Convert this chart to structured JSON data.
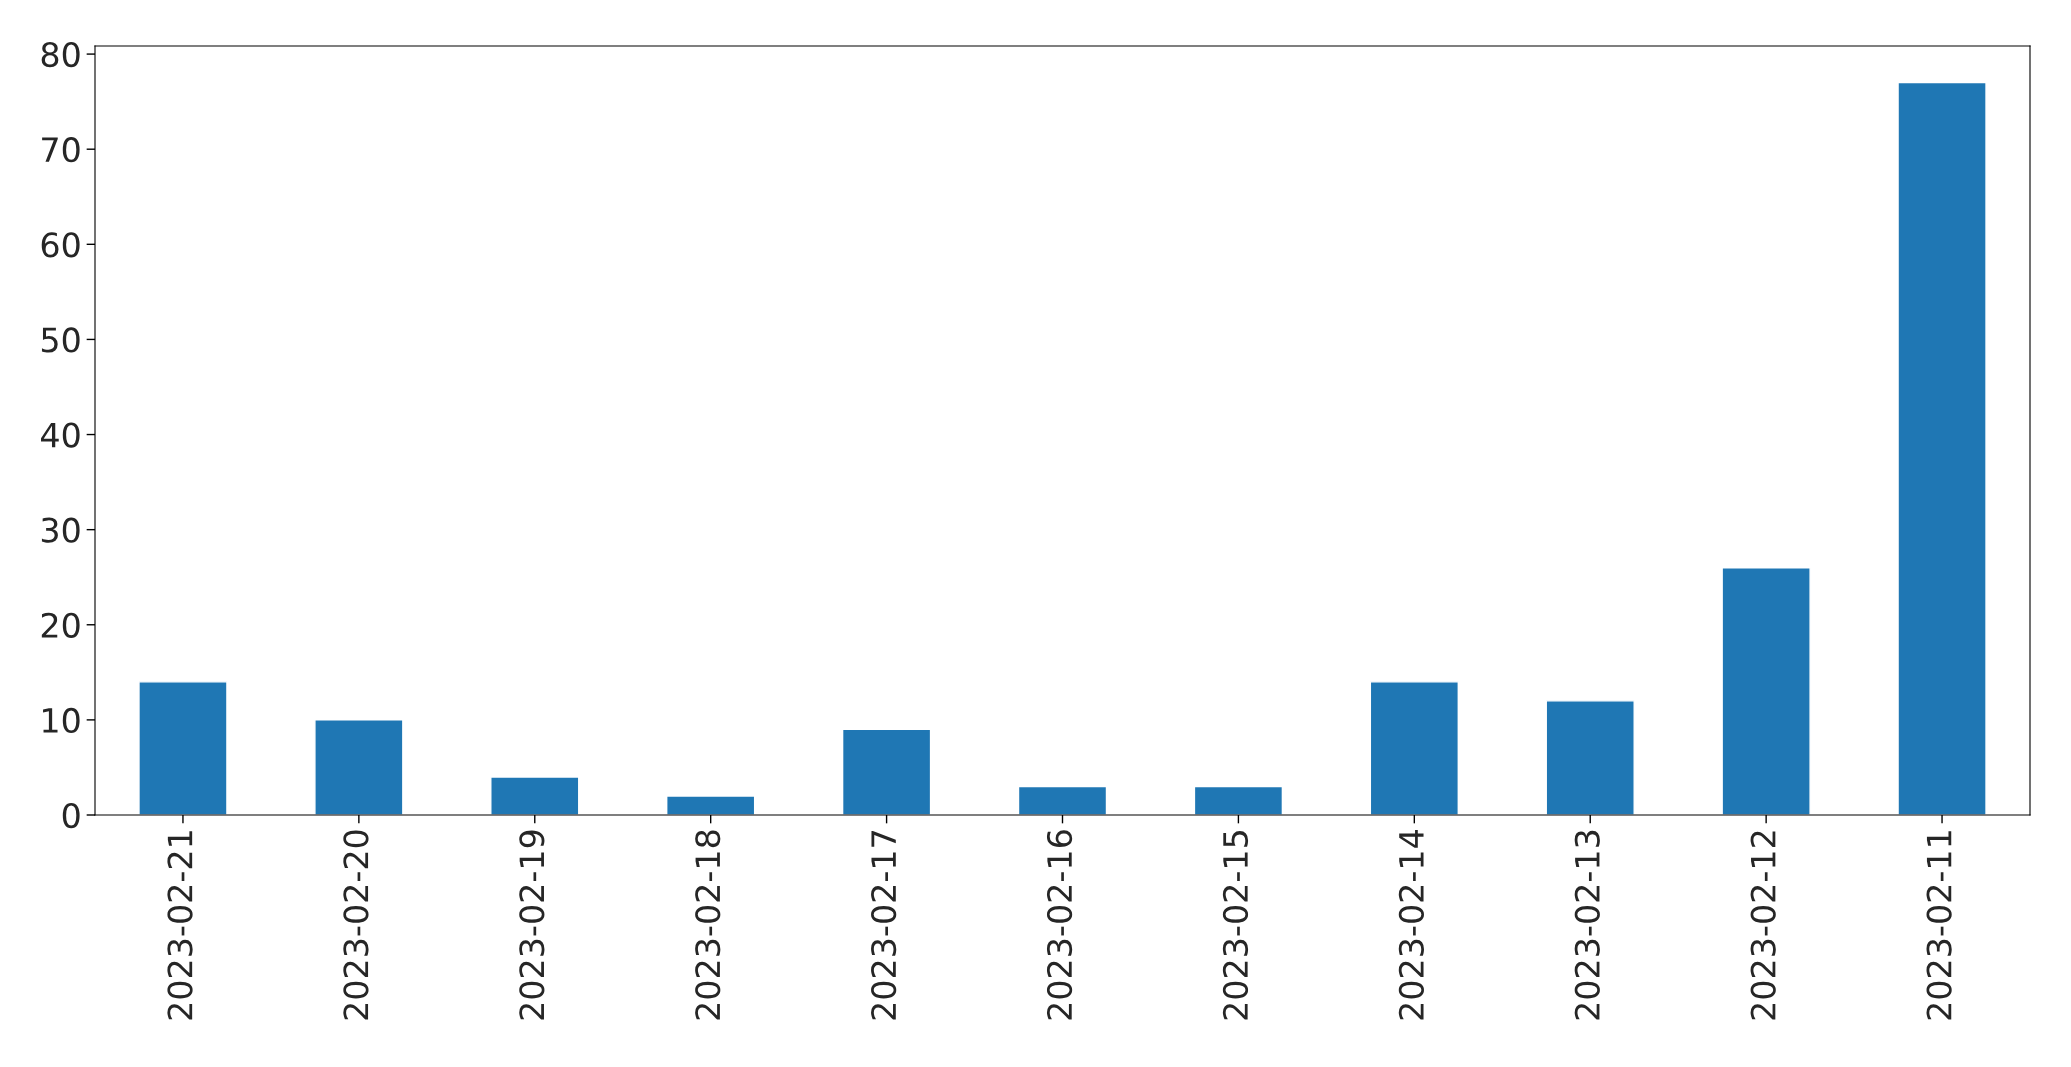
{
  "chart_data": {
    "type": "bar",
    "categories": [
      "2023-02-21",
      "2023-02-20",
      "2023-02-19",
      "2023-02-18",
      "2023-02-17",
      "2023-02-16",
      "2023-02-15",
      "2023-02-14",
      "2023-02-13",
      "2023-02-12",
      "2023-02-11"
    ],
    "values": [
      14,
      10,
      4,
      2,
      9,
      3,
      3,
      14,
      12,
      26,
      77
    ],
    "color": "#1f77b4",
    "ylim": [
      0,
      80.85
    ],
    "yticks": [
      0,
      10,
      20,
      30,
      40,
      50,
      60,
      70,
      80
    ],
    "grid": false
  }
}
